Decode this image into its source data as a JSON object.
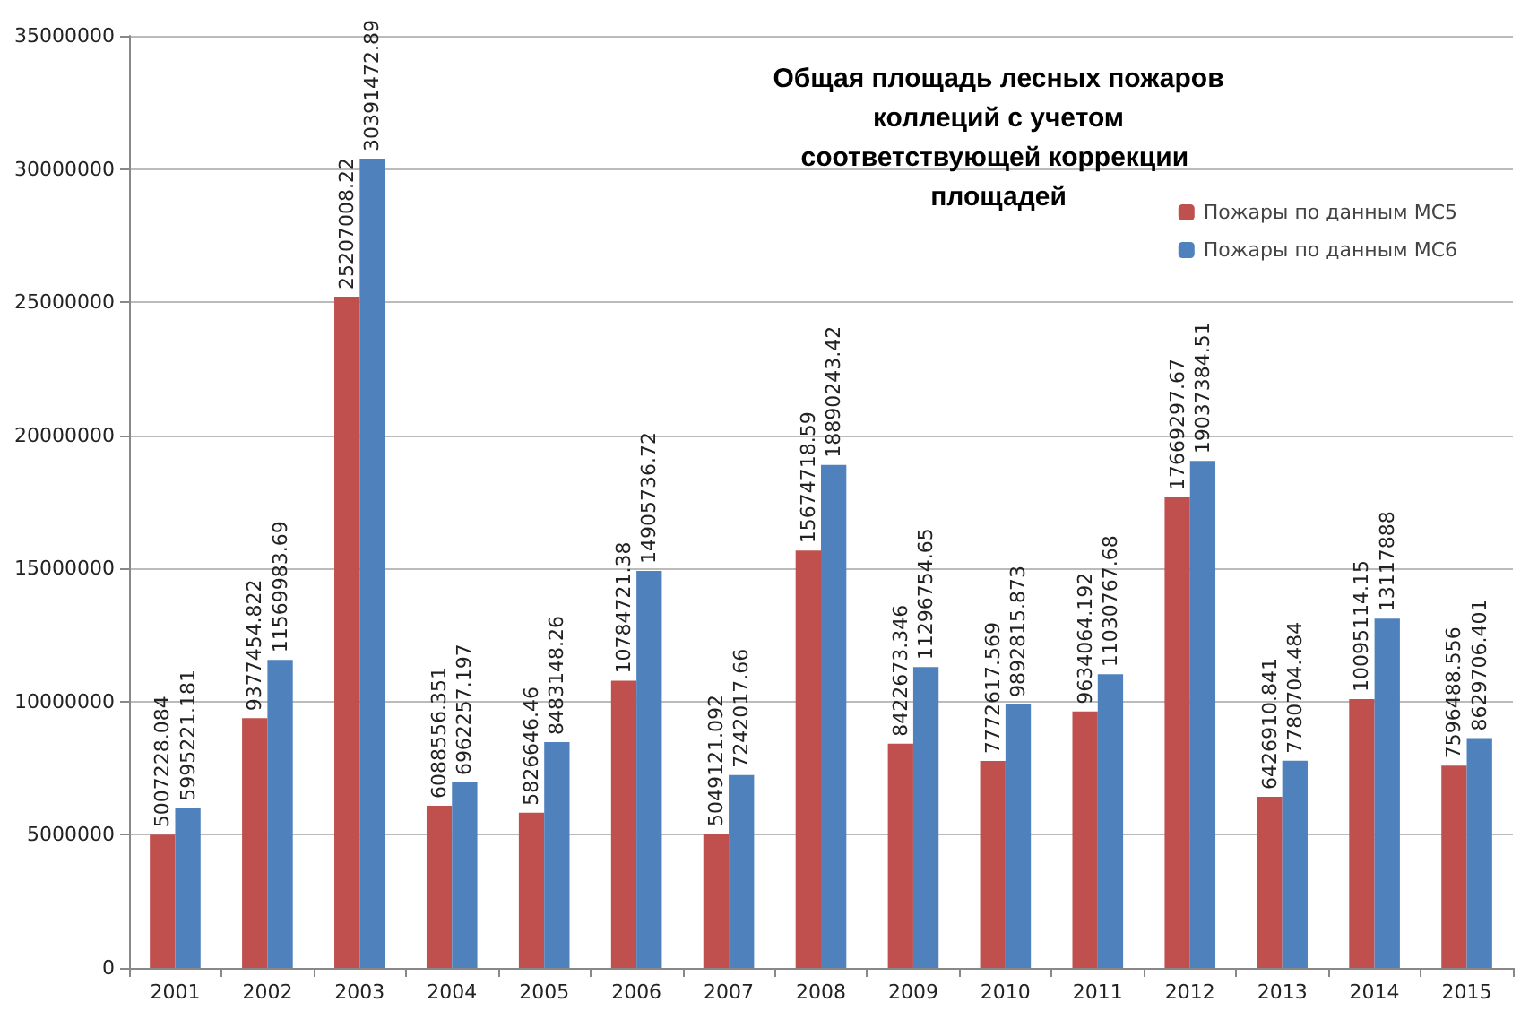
{
  "chart_data": {
    "type": "bar",
    "title": "Общая площадь лесных пожаров коллеций с учетом соответствующей коррекции площадей",
    "categories": [
      "2001",
      "2002",
      "2003",
      "2004",
      "2005",
      "2006",
      "2007",
      "2008",
      "2009",
      "2010",
      "2011",
      "2012",
      "2013",
      "2014",
      "2015"
    ],
    "series": [
      {
        "name": "Пожары по данным MC5",
        "color": "#c0504d",
        "values": [
          5007228.084,
          9377454.822,
          25207008.22,
          6088556.351,
          5826646.46,
          10784721.38,
          5049121.092,
          15674718.59,
          8422673.346,
          7772617.569,
          9634064.192,
          17669297.67,
          6426910.841,
          10095114.15,
          7596488.556
        ]
      },
      {
        "name": "Пожары по данным MC6",
        "color": "#4f81bd",
        "values": [
          5995221.181,
          11569983.69,
          30391472.89,
          6962257.197,
          8483148.26,
          14905736.72,
          7242017.66,
          18890243.42,
          11296754.65,
          9892815.873,
          11030767.68,
          19037384.51,
          7780704.484,
          13117888,
          8629706.401
        ]
      }
    ],
    "ylim": [
      0,
      35000000
    ],
    "yticks": [
      0,
      5000000,
      10000000,
      15000000,
      20000000,
      25000000,
      30000000,
      35000000
    ],
    "grid": "y",
    "legend": "top right",
    "data_labels": true
  }
}
